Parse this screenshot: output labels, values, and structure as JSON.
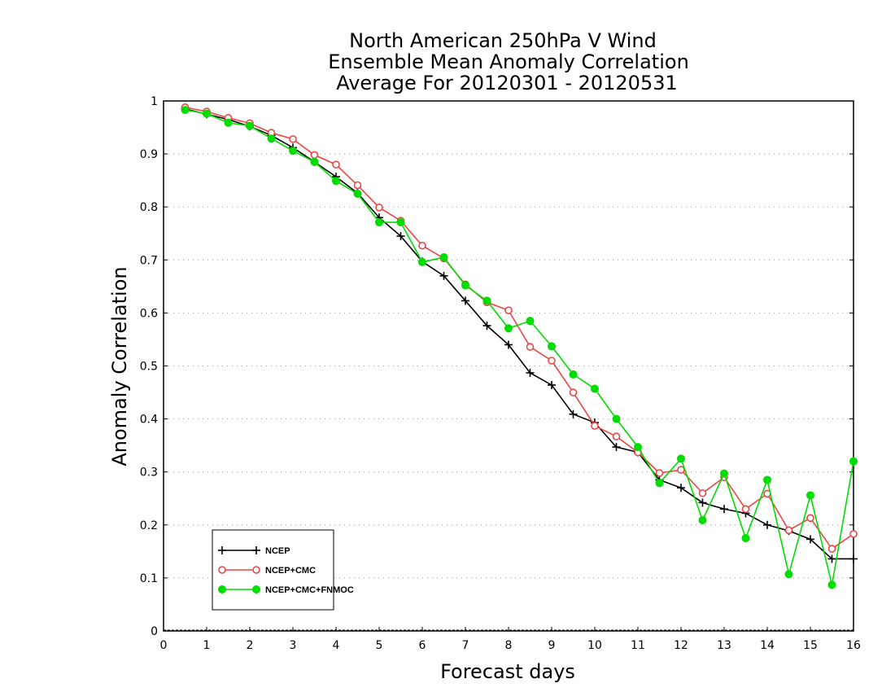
{
  "chart_data": {
    "type": "line",
    "title": [
      "North American 250hPa V Wind",
      "Ensemble Mean Anomaly Correlation",
      "Average For 20120301 - 20120531"
    ],
    "xlabel": "Forecast days",
    "ylabel": "Anomaly Correlation",
    "xlim": [
      0,
      16
    ],
    "ylim": [
      0,
      1
    ],
    "xticks": [
      "0",
      "1",
      "2",
      "3",
      "4",
      "5",
      "6",
      "7",
      "8",
      "9",
      "10",
      "11",
      "12",
      "13",
      "14",
      "15",
      "16"
    ],
    "yticks": [
      "0",
      "0.1",
      "0.2",
      "0.3",
      "0.4",
      "0.5",
      "0.6",
      "0.7",
      "0.8",
      "0.9",
      "1"
    ],
    "grid": "horizontal dotted",
    "legend_position": "bottom-left",
    "x": [
      0.5,
      1,
      1.5,
      2,
      2.5,
      3,
      3.5,
      4,
      4.5,
      5,
      5.5,
      6,
      6.5,
      7,
      7.5,
      8,
      8.5,
      9,
      9.5,
      10,
      10.5,
      11,
      11.5,
      12,
      12.5,
      13,
      13.5,
      14,
      14.5,
      15,
      15.5,
      16
    ],
    "series": [
      {
        "name": "NCEP",
        "color": "#000000",
        "marker": "plus",
        "values": [
          0.985,
          0.975,
          0.965,
          0.952,
          0.935,
          0.912,
          0.885,
          0.857,
          0.826,
          0.78,
          0.745,
          0.697,
          0.67,
          0.623,
          0.576,
          0.54,
          0.487,
          0.464,
          0.409,
          0.393,
          0.347,
          0.337,
          0.285,
          0.27,
          0.242,
          0.23,
          0.222,
          0.2,
          0.189,
          0.173,
          0.136,
          0.136
        ]
      },
      {
        "name": "NCEP+CMC",
        "color": "#ee4444",
        "marker": "open-circle",
        "values": [
          0.988,
          0.98,
          0.968,
          0.958,
          0.94,
          0.928,
          0.898,
          0.88,
          0.841,
          0.799,
          0.774,
          0.727,
          0.703,
          0.654,
          0.62,
          0.605,
          0.536,
          0.51,
          0.45,
          0.387,
          0.367,
          0.337,
          0.298,
          0.304,
          0.26,
          0.29,
          0.23,
          0.259,
          0.19,
          0.213,
          0.155,
          0.183
        ]
      },
      {
        "name": "NCEP+CMC+FNMOC",
        "color": "#00dd00",
        "marker": "filled-circle",
        "values": [
          0.983,
          0.976,
          0.959,
          0.953,
          0.929,
          0.906,
          0.885,
          0.849,
          0.825,
          0.771,
          0.771,
          0.696,
          0.705,
          0.652,
          0.623,
          0.571,
          0.585,
          0.537,
          0.484,
          0.457,
          0.4,
          0.347,
          0.279,
          0.325,
          0.209,
          0.297,
          0.175,
          0.285,
          0.107,
          0.256,
          0.087,
          0.32
        ]
      }
    ]
  }
}
